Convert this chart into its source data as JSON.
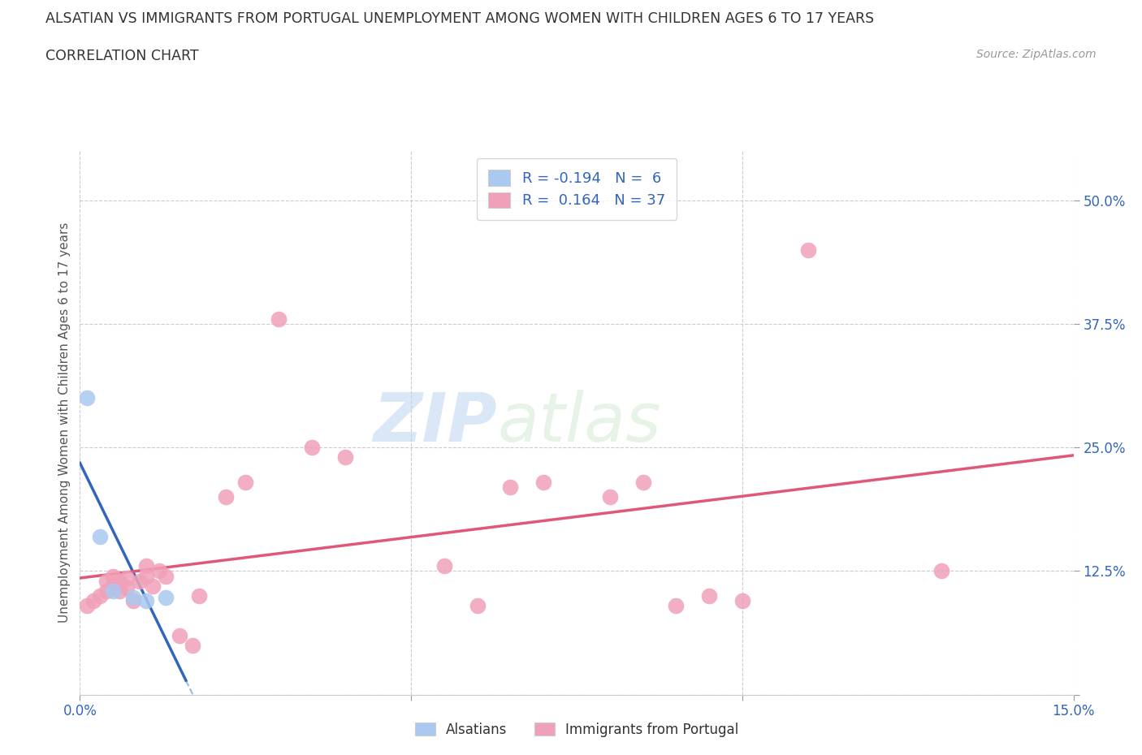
{
  "title": "ALSATIAN VS IMMIGRANTS FROM PORTUGAL UNEMPLOYMENT AMONG WOMEN WITH CHILDREN AGES 6 TO 17 YEARS",
  "subtitle": "CORRELATION CHART",
  "source": "Source: ZipAtlas.com",
  "ylabel": "Unemployment Among Women with Children Ages 6 to 17 years",
  "xlim": [
    0.0,
    0.15
  ],
  "ylim": [
    0.0,
    0.55
  ],
  "xticks": [
    0.0,
    0.05,
    0.1,
    0.15
  ],
  "xtick_labels": [
    "0.0%",
    "",
    "",
    "15.0%"
  ],
  "yticks": [
    0.0,
    0.125,
    0.25,
    0.375,
    0.5
  ],
  "ytick_labels": [
    "",
    "12.5%",
    "25.0%",
    "37.5%",
    "50.0%"
  ],
  "alsatian_color": "#aac8f0",
  "portugal_color": "#f0a0b8",
  "alsatian_line_color": "#3366bb",
  "portugal_line_color": "#e05878",
  "alsatian_dashed_color": "#99bbdd",
  "legend_R_alsatian": "-0.194",
  "legend_N_alsatian": "6",
  "legend_R_portugal": "0.164",
  "legend_N_portugal": "37",
  "watermark_zip": "ZIP",
  "watermark_atlas": "atlas",
  "alsatian_x": [
    0.001,
    0.003,
    0.005,
    0.008,
    0.01,
    0.013
  ],
  "alsatian_y": [
    0.3,
    0.16,
    0.105,
    0.098,
    0.095,
    0.098
  ],
  "portugal_x": [
    0.001,
    0.002,
    0.003,
    0.004,
    0.004,
    0.005,
    0.005,
    0.006,
    0.006,
    0.007,
    0.007,
    0.008,
    0.009,
    0.01,
    0.01,
    0.011,
    0.012,
    0.013,
    0.015,
    0.017,
    0.018,
    0.022,
    0.025,
    0.03,
    0.035,
    0.04,
    0.055,
    0.06,
    0.065,
    0.07,
    0.08,
    0.085,
    0.09,
    0.095,
    0.1,
    0.11,
    0.13
  ],
  "portugal_y": [
    0.09,
    0.095,
    0.1,
    0.105,
    0.115,
    0.11,
    0.12,
    0.105,
    0.115,
    0.108,
    0.118,
    0.095,
    0.115,
    0.12,
    0.13,
    0.11,
    0.125,
    0.12,
    0.06,
    0.05,
    0.1,
    0.2,
    0.215,
    0.38,
    0.25,
    0.24,
    0.13,
    0.09,
    0.21,
    0.215,
    0.2,
    0.215,
    0.09,
    0.1,
    0.095,
    0.45,
    0.125
  ],
  "background_color": "#ffffff",
  "grid_color": "#cccccc"
}
